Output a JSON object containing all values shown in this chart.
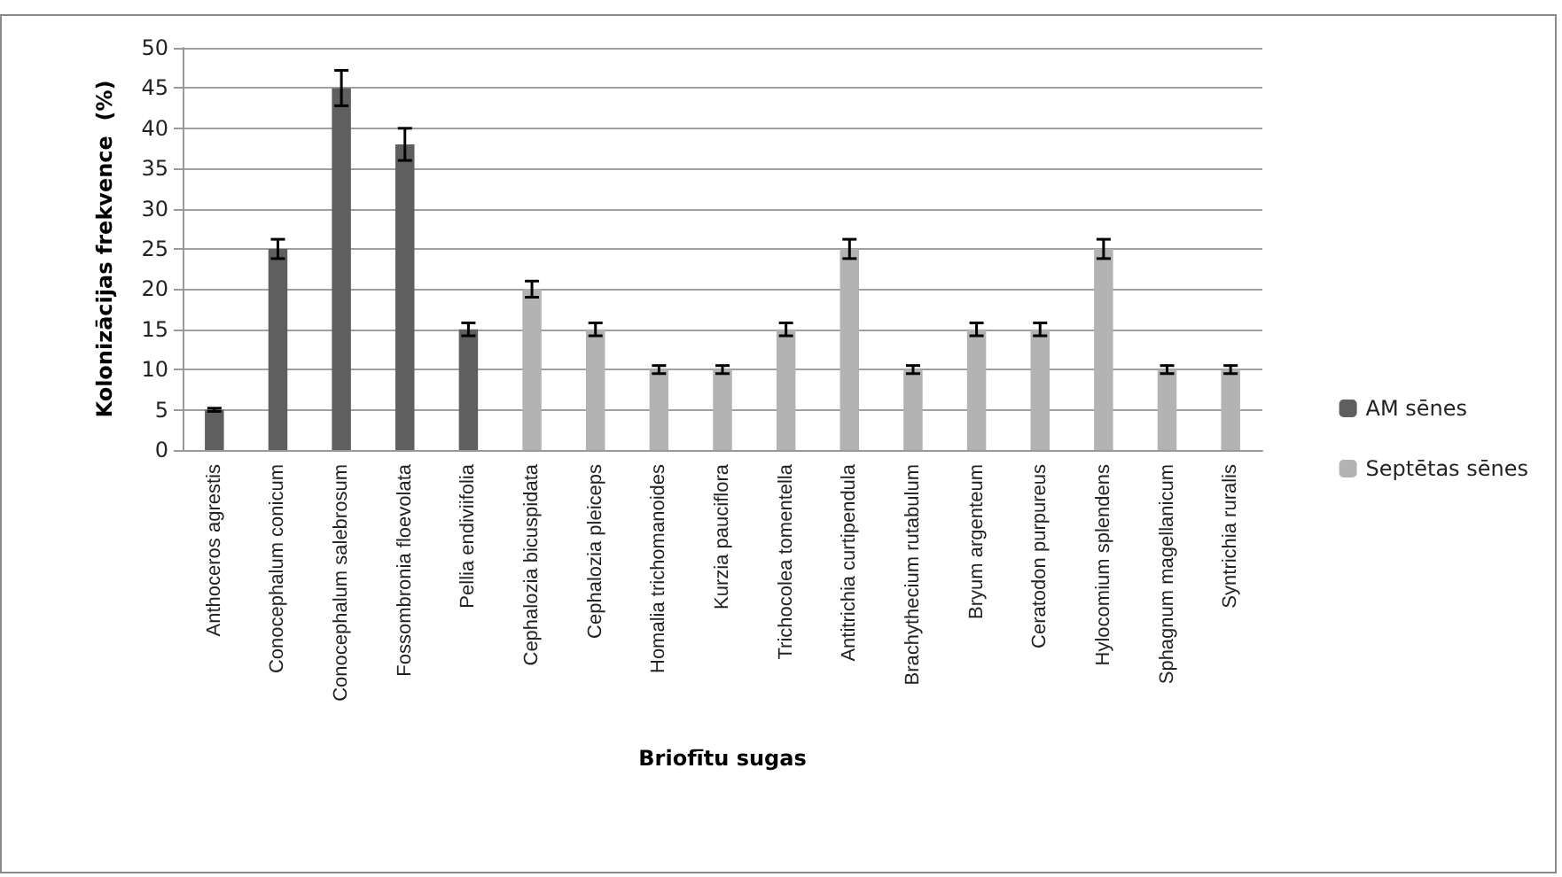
{
  "chart_data": {
    "type": "bar",
    "xlabel": "Briofītu sugas",
    "ylabel": "Kolonizācijas frekvence  (%)",
    "categories": [
      "Anthoceros agrestis",
      "Conocephalum conicum",
      "Conocephalum salebrosum",
      "Fossombronia floevolata",
      "Pellia endiviifolia",
      "Cephalozia bicuspidata",
      "Cephalozia pleiceps",
      "Homalia trichomanoides",
      "Kurzia pauciflora",
      "Trichocolea tomentella",
      "Antitrichia curtipendula",
      "Brachythecium rutabulum",
      "Bryum argenteum",
      "Ceratodon purpureus",
      "Hylocomium splendens",
      "Sphagnum magellanicum",
      "Syntrichia ruralis"
    ],
    "series": [
      {
        "name": "AM sēnes",
        "color": "#5f5f5f",
        "values": [
          5,
          25,
          45,
          38,
          15,
          null,
          null,
          null,
          null,
          null,
          null,
          null,
          null,
          null,
          null,
          null,
          null
        ],
        "errors": [
          0.2,
          1.2,
          2.2,
          2,
          0.8,
          null,
          null,
          null,
          null,
          null,
          null,
          null,
          null,
          null,
          null,
          null,
          null
        ]
      },
      {
        "name": "Septētas sēnes",
        "color": "#b3b3b3",
        "values": [
          null,
          null,
          null,
          null,
          null,
          20,
          15,
          10,
          10,
          15,
          25,
          10,
          15,
          15,
          25,
          10,
          10
        ],
        "errors": [
          null,
          null,
          null,
          null,
          null,
          1,
          0.8,
          0.5,
          0.5,
          0.8,
          1.2,
          0.5,
          0.8,
          0.8,
          1.2,
          0.5,
          0.5
        ]
      }
    ],
    "ylim": [
      0,
      50
    ],
    "yticks": [
      0,
      5,
      10,
      15,
      20,
      25,
      30,
      35,
      40,
      45,
      50
    ],
    "grid": "y",
    "legend": "right"
  }
}
